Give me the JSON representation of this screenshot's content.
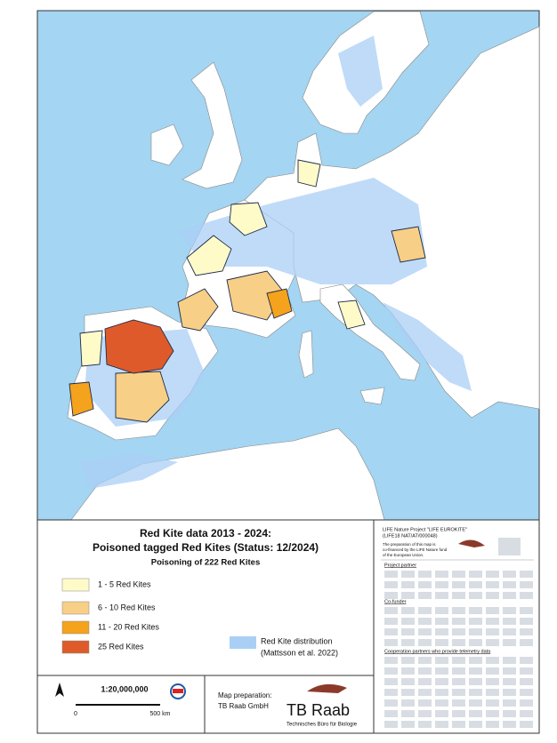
{
  "map": {
    "title": [
      "Red Kite data 2013 - 2024:",
      "Poisoned tagged Red Kites (Status: 12/2024)"
    ],
    "subtitle": "Poisoning of 222 Red Kites",
    "legend": [
      {
        "label": "1 - 5 Red Kites",
        "color": "#fffbc8"
      },
      {
        "label": "6 - 10 Red Kites",
        "color": "#f7cf86"
      },
      {
        "label": "11 - 20 Red Kites",
        "color": "#f5a21c"
      },
      {
        "label": "25 Red Kites",
        "color": "#df5a2a"
      }
    ],
    "distribution": {
      "label": "Red Kite distribution",
      "source": "(Mattsson et al. 2022)",
      "color": "#a9cff5"
    },
    "scale": {
      "ratio": "1:20,000,000",
      "start": "0",
      "end": "500 km"
    },
    "credits": {
      "heading": "Map preparation:",
      "name": "TB Raab GmbH",
      "logo": "TB Raab",
      "logo_subtitle": "Technisches Büro für Biologie"
    },
    "project": {
      "name": "LIFE Nature Project \"LIFE EUROKITE\"",
      "code": "(LIFE18 NAT/AT/000048)",
      "note": [
        "The preparation of this map is",
        "co-financed by the LIFE Nature fund",
        "of the European Union."
      ],
      "sections": [
        "Project partner",
        "Co-funder",
        "Cooperation partners who provide telemetry data"
      ]
    }
  }
}
